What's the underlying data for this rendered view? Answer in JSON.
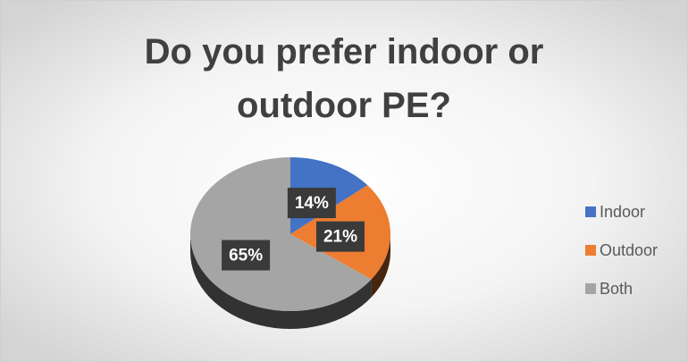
{
  "chart_data": {
    "type": "pie",
    "title": "Do you prefer indoor or outdoor PE?",
    "categories": [
      "Indoor",
      "Outdoor",
      "Both"
    ],
    "values": [
      14,
      21,
      65
    ],
    "value_labels": [
      "14%",
      "21%",
      "65%"
    ],
    "colors": [
      "#4472c4",
      "#ed7d31",
      "#a5a5a5"
    ],
    "legend": "right"
  }
}
